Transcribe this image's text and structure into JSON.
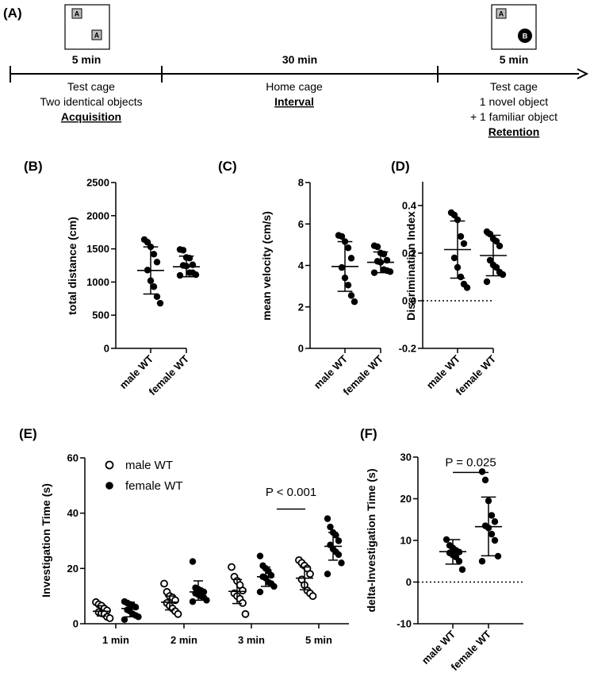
{
  "timeline": {
    "label": "(A)",
    "stages": [
      {
        "duration": "5 min",
        "lines": [
          "Test cage",
          "Two identical objects"
        ],
        "phase": "Acquisition",
        "objects": [
          "A",
          "A"
        ]
      },
      {
        "duration": "30 min",
        "lines": [
          "Home cage"
        ],
        "phase": "Interval",
        "objects": []
      },
      {
        "duration": "5 min",
        "lines": [
          "Test cage",
          "1 novel object",
          "+ 1 familiar object"
        ],
        "phase": "Retention",
        "objects": [
          "A",
          "B"
        ]
      }
    ]
  },
  "chart_data": [
    {
      "panel": "(B)",
      "type": "scatter",
      "categories": [
        "male WT",
        "female WT"
      ],
      "ylabel": "total distance (cm)",
      "ylim": [
        0,
        2500
      ],
      "yticks": [
        0,
        500,
        1000,
        1500,
        2000,
        2500
      ],
      "ytick_labels": [
        "0",
        "500",
        "1000",
        "1500",
        "2000",
        "2500"
      ],
      "series": [
        {
          "name": "male WT",
          "mean": 1175,
          "sd_low": 820,
          "sd_high": 1530,
          "points": [
            1640,
            1600,
            1530,
            1420,
            1300,
            1180,
            1020,
            930,
            780,
            680
          ]
        },
        {
          "name": "female WT",
          "mean": 1230,
          "sd_low": 1080,
          "sd_high": 1390,
          "points": [
            1490,
            1480,
            1370,
            1360,
            1260,
            1250,
            1240,
            1140,
            1140,
            1110,
            1100
          ]
        }
      ]
    },
    {
      "panel": "(C)",
      "type": "scatter",
      "categories": [
        "male WT",
        "female WT"
      ],
      "ylabel": "mean velocity (cm/s)",
      "ylim": [
        0,
        8
      ],
      "yticks": [
        0,
        2,
        4,
        6,
        8
      ],
      "ytick_labels": [
        "0",
        "2",
        "4",
        "6",
        "8"
      ],
      "series": [
        {
          "name": "male WT",
          "mean": 3.95,
          "sd_low": 2.75,
          "sd_high": 5.15,
          "points": [
            5.45,
            5.4,
            5.15,
            4.85,
            4.35,
            3.9,
            3.4,
            3.05,
            2.55,
            2.25
          ]
        },
        {
          "name": "female WT",
          "mean": 4.15,
          "sd_low": 3.65,
          "sd_high": 4.65,
          "points": [
            4.95,
            4.9,
            4.6,
            4.55,
            4.25,
            4.2,
            4.15,
            3.8,
            3.75,
            3.7,
            3.65
          ]
        }
      ]
    },
    {
      "panel": "(D)",
      "type": "scatter",
      "categories": [
        "male WT",
        "female WT"
      ],
      "ylabel": "Discrimination Index",
      "ylim": [
        -0.2,
        0.5
      ],
      "yticks": [
        -0.2,
        0,
        0.2,
        0.4
      ],
      "ytick_labels": [
        "-0.2",
        "0.0",
        "0.2",
        "0.4"
      ],
      "reference_line": 0,
      "series": [
        {
          "name": "male WT",
          "mean": 0.215,
          "sd_low": 0.095,
          "sd_high": 0.335,
          "points": [
            0.37,
            0.36,
            0.34,
            0.27,
            0.24,
            0.18,
            0.14,
            0.1,
            0.07,
            0.055
          ]
        },
        {
          "name": "female WT",
          "mean": 0.19,
          "sd_low": 0.105,
          "sd_high": 0.275,
          "points": [
            0.29,
            0.28,
            0.26,
            0.25,
            0.23,
            0.17,
            0.15,
            0.14,
            0.12,
            0.11,
            0.08
          ]
        }
      ]
    },
    {
      "panel": "(E)",
      "type": "scatter",
      "categories": [
        "1 min",
        "2 min",
        "3 min",
        "5 min"
      ],
      "ylabel": "Investigation Time (s)",
      "ylim": [
        0,
        60
      ],
      "yticks": [
        0,
        20,
        40,
        60
      ],
      "ytick_labels": [
        "0",
        "20",
        "40",
        "60"
      ],
      "legend": [
        "male WT",
        "female WT"
      ],
      "annotation": "P < 0.001",
      "series": [
        {
          "name": "male WT",
          "marker": "open",
          "groups": [
            {
              "mean": 4.5,
              "sd_low": 2.8,
              "sd_high": 6.5,
              "points": [
                7.8,
                7.0,
                6.5,
                5.5,
                4.8,
                4.2,
                3.8,
                3.5,
                2.5,
                2.0
              ]
            },
            {
              "mean": 7.8,
              "sd_low": 5.0,
              "sd_high": 10.0,
              "points": [
                14.5,
                11.5,
                10.0,
                9.5,
                8.5,
                7.5,
                6.5,
                5.5,
                4.5,
                3.5
              ]
            },
            {
              "mean": 11.7,
              "sd_low": 7.3,
              "sd_high": 16.0,
              "points": [
                20.5,
                17.0,
                15.5,
                14.0,
                12.0,
                11.0,
                10.0,
                9.0,
                7.5,
                3.5
              ]
            },
            {
              "mean": 16.5,
              "sd_low": 12.3,
              "sd_high": 20.5,
              "points": [
                23.0,
                22.0,
                21.0,
                20.0,
                18.0,
                16.0,
                14.0,
                12.0,
                11.0,
                10.0
              ]
            }
          ]
        },
        {
          "name": "female WT",
          "marker": "filled",
          "groups": [
            {
              "mean": 5.5,
              "sd_low": 2.5,
              "sd_high": 7.8,
              "points": [
                8.0,
                7.5,
                7.0,
                6.5,
                6.0,
                5.0,
                4.5,
                3.5,
                3.0,
                2.5,
                1.5
              ]
            },
            {
              "mean": 11.5,
              "sd_low": 8.5,
              "sd_high": 15.5,
              "points": [
                22.5,
                13.0,
                12.5,
                12.0,
                11.5,
                11.0,
                10.5,
                10.0,
                9.5,
                8.5,
                8.0
              ]
            },
            {
              "mean": 17.0,
              "sd_low": 13.5,
              "sd_high": 20.5,
              "points": [
                24.5,
                21.0,
                20.0,
                19.0,
                17.5,
                17.0,
                16.5,
                15.0,
                14.5,
                13.5,
                11.5
              ]
            },
            {
              "mean": 28.0,
              "sd_low": 23.0,
              "sd_high": 33.0,
              "points": [
                38.0,
                35.0,
                33.0,
                32.0,
                30.0,
                28.5,
                27.0,
                26.0,
                25.0,
                22.0,
                18.0
              ]
            }
          ]
        }
      ]
    },
    {
      "panel": "(F)",
      "type": "scatter",
      "categories": [
        "male WT",
        "female WT"
      ],
      "ylabel": "delta-Investigation Time (s)",
      "ylim": [
        -10,
        30
      ],
      "yticks": [
        -10,
        0,
        10,
        20,
        30
      ],
      "ytick_labels": [
        "-10",
        "0",
        "10",
        "20",
        "30"
      ],
      "reference_line": 0,
      "annotation": "P = 0.025",
      "series": [
        {
          "name": "male WT",
          "mean": 7.3,
          "sd_low": 4.3,
          "sd_high": 10.2,
          "points": [
            10.2,
            8.8,
            8.2,
            7.6,
            7.2,
            7.0,
            6.5,
            6.0,
            5.0,
            3.0
          ]
        },
        {
          "name": "female WT",
          "mean": 13.3,
          "sd_low": 6.3,
          "sd_high": 20.4,
          "points": [
            26.5,
            24.5,
            19.5,
            16.0,
            14.5,
            13.5,
            13.0,
            11.5,
            10.0,
            6.2,
            5.0
          ]
        }
      ]
    }
  ]
}
